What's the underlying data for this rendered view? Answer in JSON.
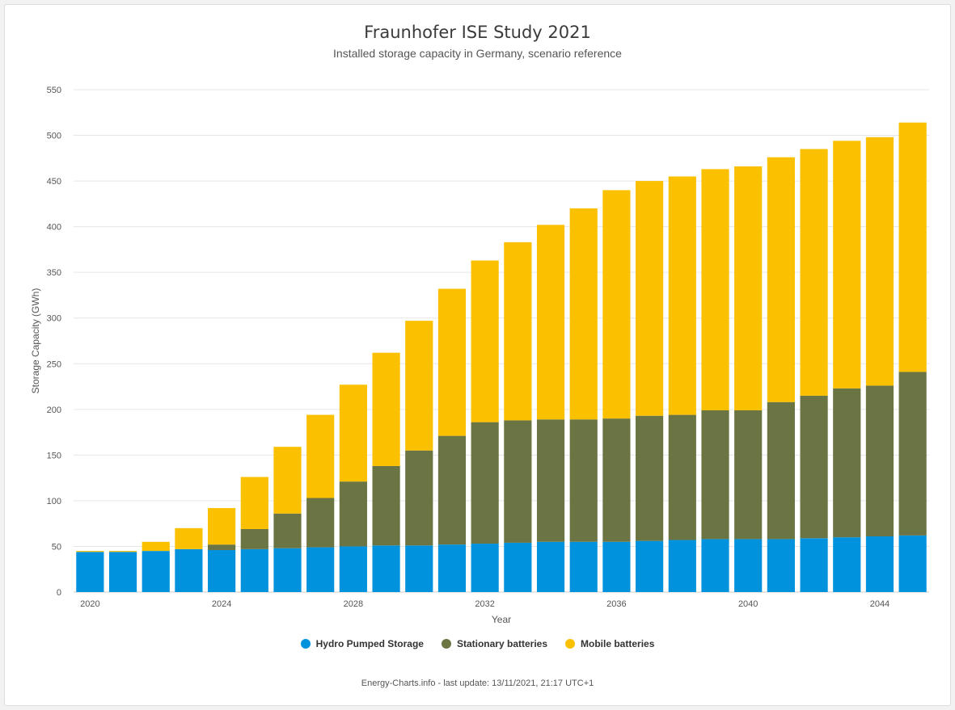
{
  "title": "Fraunhofer ISE Study 2021",
  "subtitle": "Installed storage capacity in Germany, scenario reference",
  "footer": "Energy-Charts.info  - last update: 13/11/2021, 21:17 UTC+1",
  "colors": {
    "hydro": "#0092dd",
    "stationary": "#6b7443",
    "mobile": "#fbc000",
    "grid": "#e6e6e6",
    "axis_text": "#555555"
  },
  "chart_data": {
    "type": "bar",
    "stacked": true,
    "xlabel": "Year",
    "ylabel": "Storage Capacity (GWh)",
    "ylim": [
      0,
      550
    ],
    "yticks": [
      0,
      50,
      100,
      150,
      200,
      250,
      300,
      350,
      400,
      450,
      500,
      550
    ],
    "xtick_labels": [
      "2020",
      "2024",
      "2028",
      "2032",
      "2036",
      "2040",
      "2044"
    ],
    "grid": true,
    "legend_position": "bottom-center",
    "categories": [
      "2020",
      "2021",
      "2022",
      "2023",
      "2024",
      "2025",
      "2026",
      "2027",
      "2028",
      "2029",
      "2030",
      "2031",
      "2032",
      "2033",
      "2034",
      "2035",
      "2036",
      "2037",
      "2038",
      "2039",
      "2040",
      "2041",
      "2042",
      "2043",
      "2044",
      "2045"
    ],
    "series": [
      {
        "name": "Hydro Pumped Storage",
        "color_key": "hydro",
        "values": [
          44,
          44,
          45,
          47,
          46,
          47,
          48,
          49,
          50,
          51,
          51,
          52,
          53,
          54,
          55,
          55,
          55,
          56,
          57,
          58,
          58,
          58,
          59,
          60,
          61,
          62
        ]
      },
      {
        "name": "Stationary batteries",
        "color_key": "stationary",
        "values": [
          0,
          0,
          0,
          0,
          6,
          22,
          38,
          54,
          71,
          87,
          104,
          119,
          133,
          134,
          134,
          134,
          135,
          137,
          137,
          141,
          141,
          150,
          156,
          163,
          165,
          179
        ]
      },
      {
        "name": "Mobile batteries",
        "color_key": "mobile",
        "values": [
          1,
          1,
          10,
          23,
          40,
          57,
          73,
          91,
          106,
          124,
          142,
          161,
          177,
          195,
          213,
          231,
          250,
          257,
          261,
          264,
          267,
          268,
          270,
          271,
          272,
          273
        ]
      }
    ]
  }
}
